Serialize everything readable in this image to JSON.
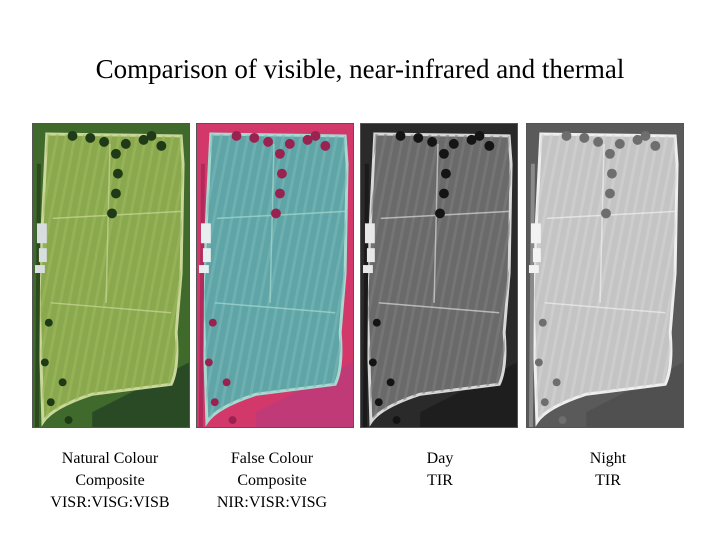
{
  "title": "Comparison of visible, near-infrared and thermal",
  "panels": [
    {
      "id": "natural",
      "caption": [
        "Natural Colour",
        "Composite",
        "VISR:VISG:VISB"
      ],
      "colors": {
        "background": "#3f6a2c",
        "field": "#8aa84e",
        "field_stripe": "#9fbb5f",
        "field_edge": "#c9d89a",
        "hedge": "#2d4a1f",
        "trees": "#1f3a16",
        "buildings": "#d8dde0",
        "woodland": "#2a4a26"
      }
    },
    {
      "id": "false-colour",
      "caption": [
        "False Colour",
        "Composite",
        "NIR:VISR:VISG"
      ],
      "colors": {
        "background": "#d2386a",
        "field": "#5fa5a8",
        "field_stripe": "#7ab8b5",
        "field_edge": "#a8d8d0",
        "hedge": "#b02a5c",
        "trees": "#9a2250",
        "buildings": "#e6eef0",
        "woodland": "#c03a78"
      }
    },
    {
      "id": "day-tir",
      "caption": [
        "Day",
        "TIR"
      ],
      "colors": {
        "background": "#2a2a2a",
        "field": "#6a6a6a",
        "field_stripe": "#7e7e7e",
        "field_edge": "#d8d8d8",
        "hedge": "#1a1a1a",
        "trees": "#141414",
        "buildings": "#e8e8e8",
        "woodland": "#1e1e1e"
      }
    },
    {
      "id": "night-tir",
      "caption": [
        "Night",
        "TIR"
      ],
      "colors": {
        "background": "#5a5a5a",
        "field": "#c4c4c4",
        "field_stripe": "#d6d6d6",
        "field_edge": "#efefef",
        "hedge": "#8a8a8a",
        "trees": "#6e6e6e",
        "buildings": "#f2f2f2",
        "woodland": "#505050"
      }
    }
  ]
}
